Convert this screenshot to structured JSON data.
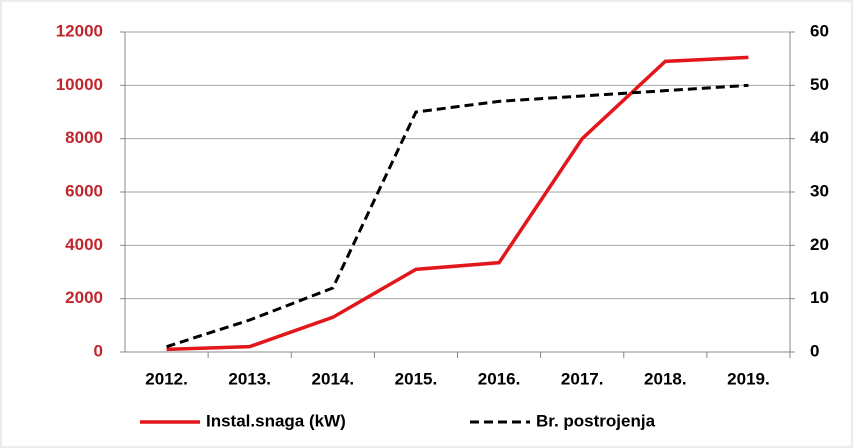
{
  "chart_data": {
    "type": "line",
    "categories": [
      "2012.",
      "2013.",
      "2014.",
      "2015.",
      "2016.",
      "2017.",
      "2018.",
      "2019."
    ],
    "series": [
      {
        "name": "Instal.snaga (kW)",
        "color": "#e3161b",
        "values": [
          100,
          200,
          1300,
          3100,
          3350,
          8000,
          10900,
          11050
        ]
      },
      {
        "name": "Br. postrojenja",
        "color": "#000000",
        "axis": "y2",
        "dashed": true,
        "values": [
          1,
          6,
          12,
          45,
          47,
          48,
          49,
          50
        ]
      }
    ],
    "ylim": [
      0,
      12000
    ],
    "yticks": [
      0,
      2000,
      4000,
      6000,
      8000,
      10000,
      12000
    ],
    "ytick_color": "#c0272d",
    "y2lim": [
      0,
      60
    ],
    "y2ticks": [
      0,
      10,
      20,
      30,
      40,
      50,
      60
    ],
    "grid": true,
    "legend": "bottom"
  }
}
